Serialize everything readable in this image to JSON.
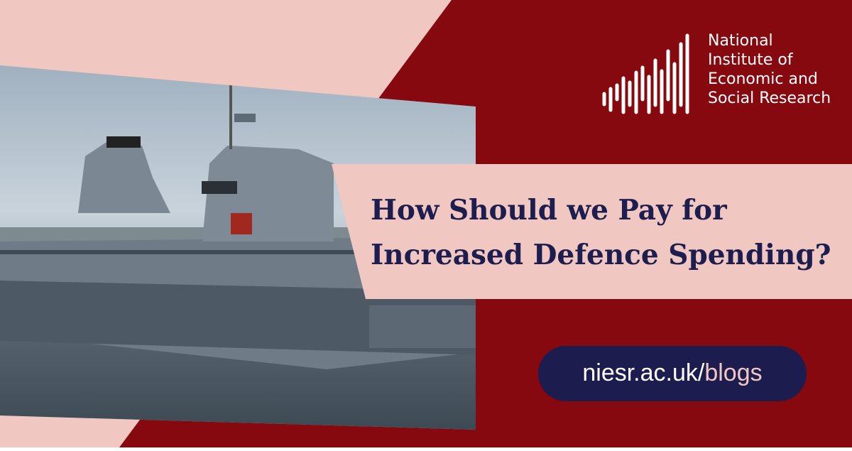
{
  "logo": {
    "lines": [
      "National",
      "Institute of",
      "Economic and",
      "Social Research"
    ]
  },
  "headline": {
    "lines": [
      "How Should we Pay for",
      "Increased Defence Spending?"
    ]
  },
  "link": {
    "domain": "niesr.ac.uk/",
    "section": "blogs"
  }
}
